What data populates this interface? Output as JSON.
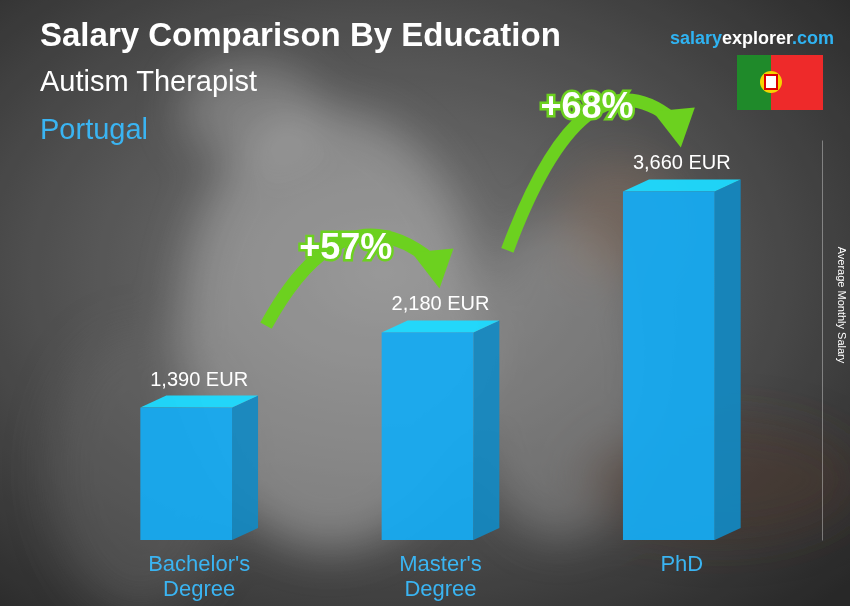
{
  "chart_data": {
    "type": "bar",
    "title": "Salary Comparison By Education",
    "subtitle": [
      "Autism Therapist",
      "Portugal"
    ],
    "source": "salaryexplorer.com",
    "ylabel": "Average Monthly Salary",
    "annotations": [
      "+57%",
      "+68%"
    ],
    "categories": [
      "Bachelor's Degree",
      "Master's Degree",
      "PhD"
    ],
    "values": [
      1390,
      2180,
      3660
    ],
    "value_labels": [
      "1,390 EUR",
      "2,180 EUR",
      "3,660 EUR"
    ],
    "color": "#16aaf0",
    "ylim": [
      0,
      4200
    ],
    "yticks": [],
    "grid": false,
    "data_labels": true,
    "tick_labels": "x"
  }
}
